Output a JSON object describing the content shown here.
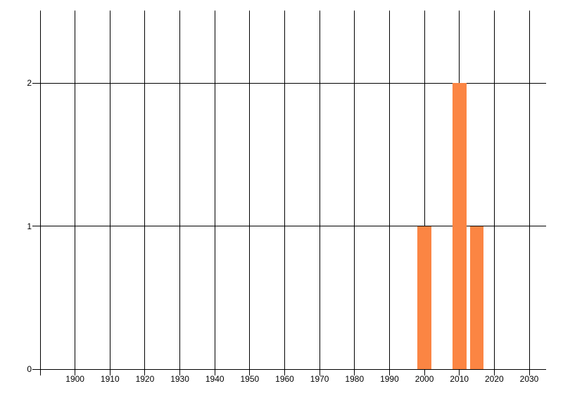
{
  "chart_data": {
    "type": "bar",
    "title": "",
    "xlabel": "",
    "ylabel": "",
    "legend": "none",
    "grid": true,
    "bars": [
      {
        "year": 2000,
        "value": 1
      },
      {
        "year": 2010,
        "value": 2
      },
      {
        "year": 2015,
        "value": 1
      }
    ],
    "bar_width_years": 4,
    "x_gridline_years": [
      1890,
      1900,
      1910,
      1920,
      1930,
      1940,
      1950,
      1960,
      1970,
      1980,
      1990,
      2000,
      2010,
      2020,
      2030
    ],
    "x_tick_labels": [
      "1900",
      "1910",
      "1920",
      "1930",
      "1940",
      "1950",
      "1960",
      "1970",
      "1980",
      "1990",
      "2000",
      "2010",
      "2020",
      "2030"
    ],
    "x_tick_label_years": [
      1900,
      1910,
      1920,
      1930,
      1940,
      1950,
      1960,
      1970,
      1980,
      1990,
      2000,
      2010,
      2020,
      2030
    ],
    "y_ticks": [
      {
        "value": 0,
        "label": "0"
      },
      {
        "value": 1,
        "label": "1"
      },
      {
        "value": 2,
        "label": "2"
      }
    ],
    "xlim": [
      1887.8,
      2034.8
    ],
    "ylim": [
      0,
      2.5
    ],
    "bar_color": "#fb8543",
    "grid_color": "#000000",
    "axis_color": "#000000",
    "label_color": "#000000",
    "background_color": "#ffffff"
  }
}
